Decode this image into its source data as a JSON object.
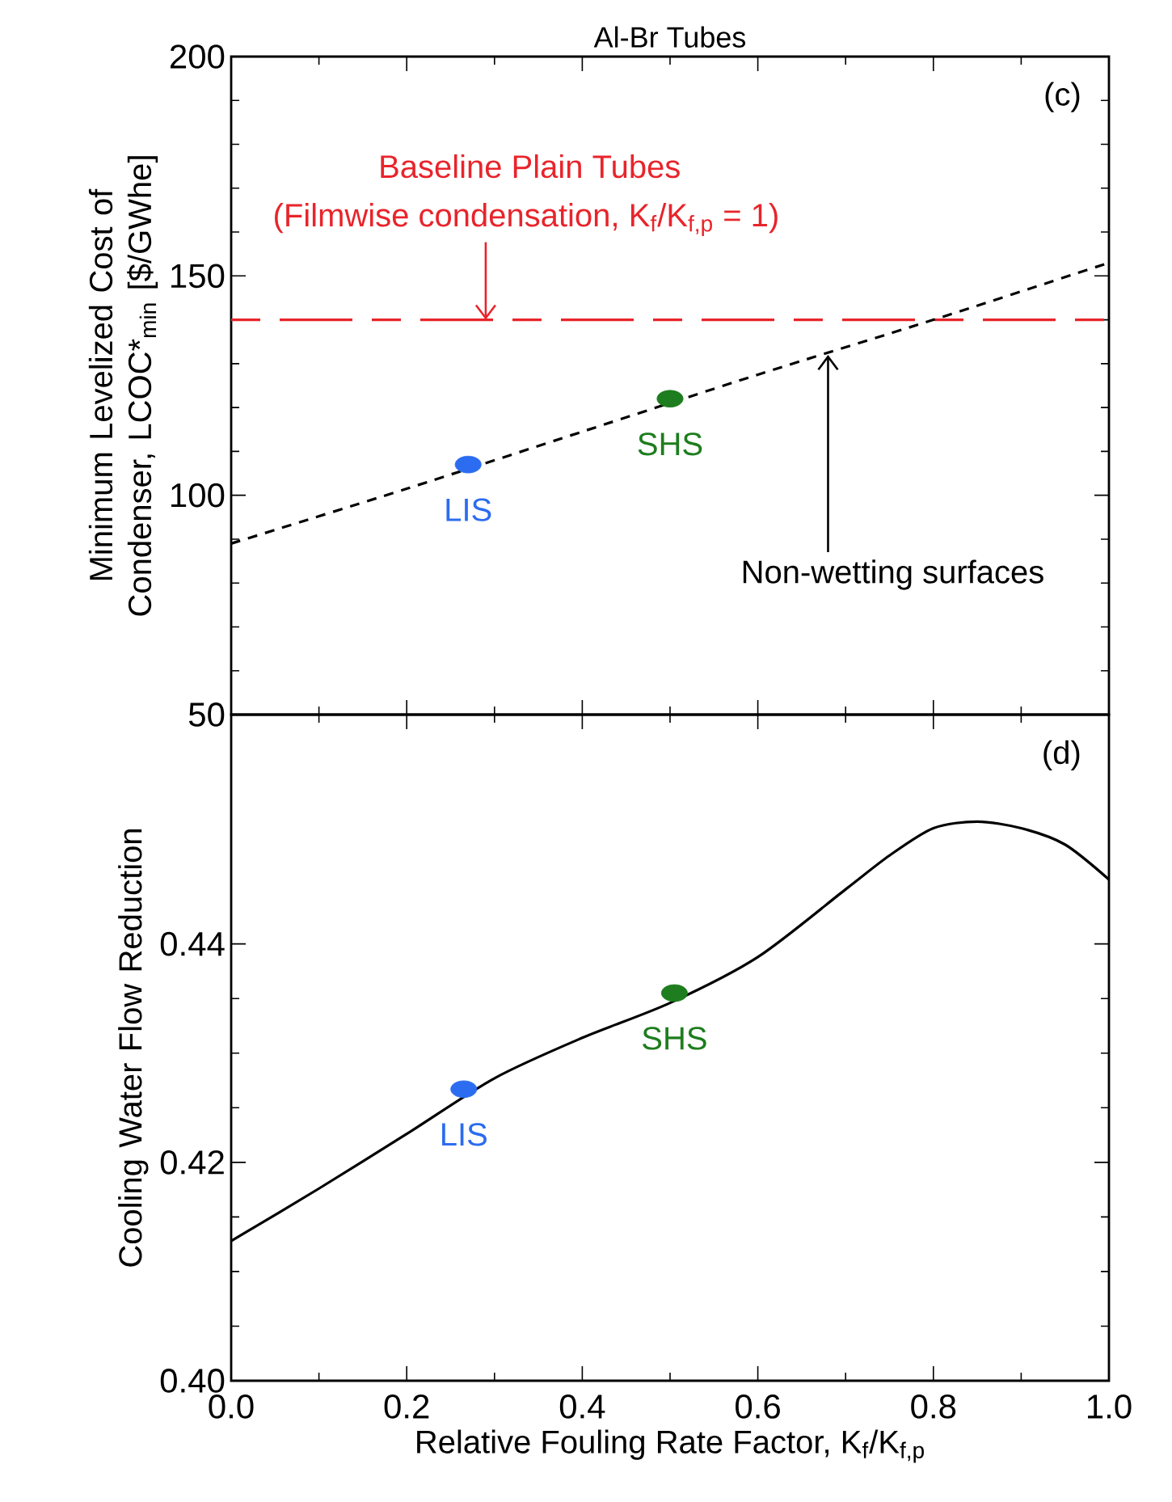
{
  "chart_data": [
    {
      "type": "line",
      "title": "Al-Br Tubes",
      "ylabel": "Minimum Levelized Cost of Condenser, LCOC*$_{min}$ [$/GWhe]",
      "xlim": [
        0,
        1
      ],
      "ylim": [
        50,
        200
      ],
      "xticks": [
        0,
        0.2,
        0.4,
        0.6,
        0.8,
        1
      ],
      "yticks": [
        50,
        100,
        150,
        200
      ],
      "tick_labels": "y",
      "series": [
        {
          "color": "#000000",
          "line_style": "dashed",
          "x": [
            0,
            0.2,
            0.4,
            0.6,
            0.8,
            1
          ],
          "values": [
            89,
            101.5,
            114.5,
            127.5,
            140,
            153
          ]
        },
        {
          "name": "LIS",
          "type": "scatter",
          "marker": "circle",
          "color": "#2b6cf0",
          "x": [
            0.27
          ],
          "values": [
            107
          ]
        },
        {
          "name": "SHS",
          "type": "scatter",
          "marker": "circle",
          "color": "#1e7d1e",
          "x": [
            0.5
          ],
          "values": [
            122
          ]
        }
      ],
      "ref_lines": [
        {
          "axis": "y",
          "value": 140,
          "label": "Baseline Plain Tubes",
          "color": "#e8242b",
          "line_style": "dashed"
        }
      ],
      "annotations": [
        "(c)",
        {
          "text": "(Filmwise condensation, K$_{f}$/K$_{f,p}$ = 1)",
          "x": 0.29,
          "y": 140
        },
        {
          "text": "Non-wetting surfaces",
          "x": 0.68,
          "y": 132
        }
      ]
    },
    {
      "type": "line",
      "xlabel": "Relative Fouling Rate Factor, K$_{f}$/K$_{f,p}$",
      "ylabel": "Cooling Water Flow Reduction",
      "xlim": [
        0,
        1
      ],
      "ylim": [
        0.4,
        0.461
      ],
      "xticks": [
        {
          "value": 0,
          "label": "0.0"
        },
        {
          "value": 0.2,
          "label": "0.2"
        },
        {
          "value": 0.4,
          "label": "0.4"
        },
        {
          "value": 0.6,
          "label": "0.6"
        },
        {
          "value": 0.8,
          "label": "0.8"
        },
        {
          "value": 1,
          "label": "1.0"
        }
      ],
      "yticks": [
        {
          "value": 0.4,
          "label": "0.40"
        },
        {
          "value": 0.42,
          "label": "0.42"
        },
        {
          "value": 0.44,
          "label": "0.44"
        }
      ],
      "series": [
        {
          "color": "#000000",
          "line_style": "solid",
          "x": [
            0,
            0.1,
            0.2,
            0.3,
            0.4,
            0.5,
            0.6,
            0.7,
            0.75,
            0.8,
            0.85,
            0.9,
            0.95,
            1
          ],
          "values": [
            0.4128,
            0.4176,
            0.4226,
            0.4277,
            0.4314,
            0.4346,
            0.4388,
            0.445,
            0.4481,
            0.4506,
            0.4512,
            0.4506,
            0.4491,
            0.4459
          ]
        },
        {
          "name": "LIS",
          "type": "scatter",
          "marker": "circle",
          "color": "#2b6cf0",
          "x": [
            0.265
          ],
          "values": [
            0.4267
          ]
        },
        {
          "name": "SHS",
          "type": "scatter",
          "marker": "circle",
          "color": "#1e7d1e",
          "x": [
            0.505
          ],
          "values": [
            0.4355
          ]
        }
      ],
      "annotations": [
        "(d)"
      ]
    }
  ]
}
